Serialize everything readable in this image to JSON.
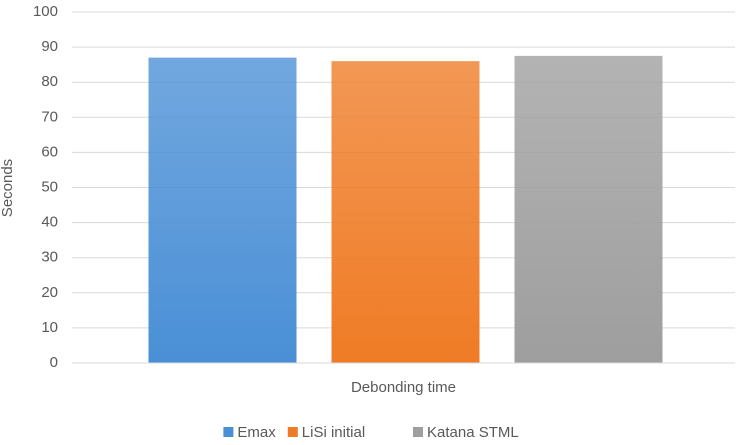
{
  "chart_data": {
    "type": "bar",
    "categories": [
      "Debonding time"
    ],
    "series": [
      {
        "name": "Emax",
        "color": "#4a8fd6",
        "values": [
          87
        ]
      },
      {
        "name": "LiSi initial",
        "color": "#ef7b25",
        "values": [
          86
        ]
      },
      {
        "name": "Katana STML",
        "color": "#9e9e9e",
        "values": [
          87.5
        ]
      }
    ],
    "y_label": "Seconds",
    "ylim": [
      0,
      100
    ],
    "yticks": [
      0,
      10,
      20,
      30,
      40,
      50,
      60,
      70,
      80,
      90,
      100
    ],
    "grid": true,
    "legend": "bottom"
  }
}
